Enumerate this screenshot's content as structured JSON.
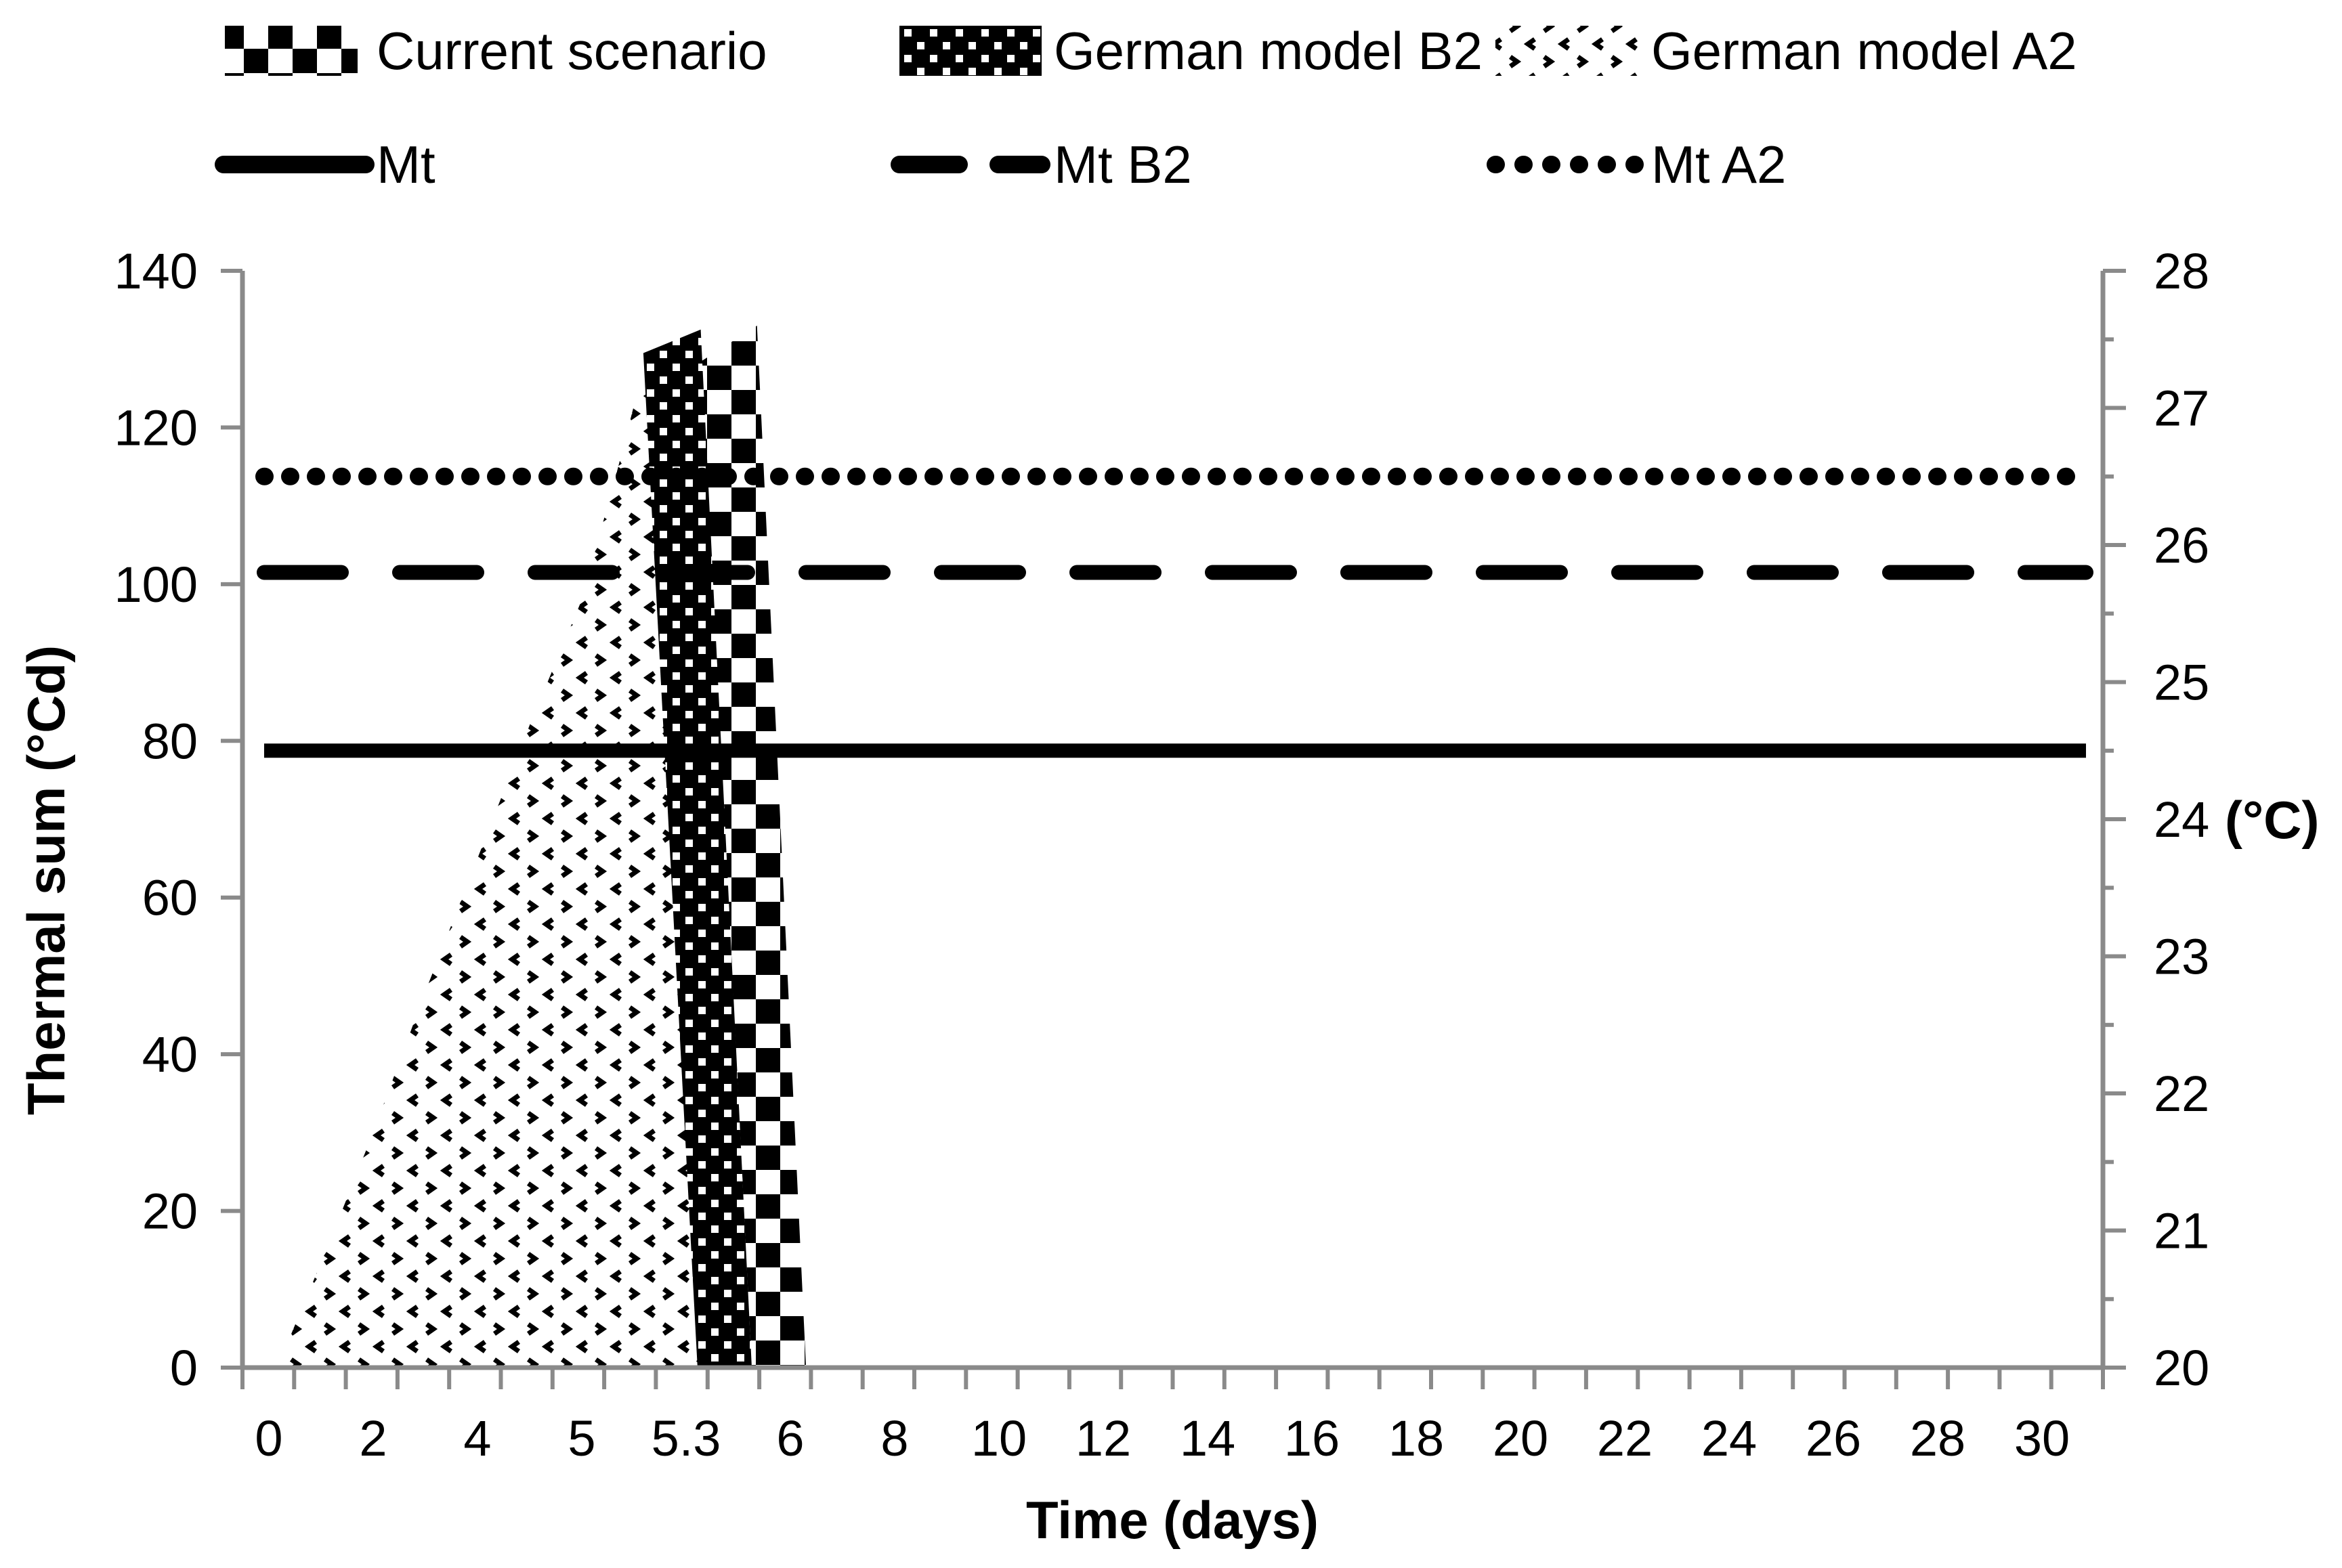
{
  "legend": {
    "areas": [
      {
        "label": "Current scenario",
        "pattern": "checker"
      },
      {
        "label": "German model B2",
        "pattern": "dense"
      },
      {
        "label": "German model A2",
        "pattern": "sparse"
      }
    ],
    "lines": [
      {
        "label": "Mt",
        "style": "solid"
      },
      {
        "label": "Mt B2",
        "style": "dashed"
      },
      {
        "label": "Mt A2",
        "style": "dotted"
      }
    ]
  },
  "chart_data": {
    "type": "area",
    "title": "",
    "xlabel": "Time (days)",
    "ylabel_left": "Thermal sum (°Cd)",
    "ylabel_right": "(°C)",
    "x_categories": [
      "0",
      "2",
      "4",
      "5",
      "5.3",
      "6",
      "8",
      "10",
      "12",
      "14",
      "16",
      "18",
      "20",
      "22",
      "24",
      "26",
      "28",
      "30"
    ],
    "y_left": {
      "min": 0,
      "max": 140,
      "ticks": [
        0,
        20,
        40,
        60,
        80,
        100,
        120,
        140
      ]
    },
    "y_right": {
      "min": 20,
      "max": 28,
      "ticks": [
        20,
        21,
        22,
        23,
        24,
        25,
        26,
        27,
        28
      ],
      "minor_step": 0.5
    },
    "grid": "off",
    "legend_position": "top",
    "hlines": [
      {
        "name": "Mt",
        "value_c": 24.5,
        "style": "solid"
      },
      {
        "name": "Mt B2",
        "value_c": 25.8,
        "style": "dashed"
      },
      {
        "name": "Mt A2",
        "value_c": 26.5,
        "style": "dotted"
      }
    ],
    "areas": [
      {
        "name": "Current scenario",
        "pattern": "checker",
        "peak_thermal_sum_cd": 133,
        "outline_idx_value": [
          [
            4.63,
            0
          ],
          [
            4.15,
            128.5
          ],
          [
            4.68,
            133
          ],
          [
            5.15,
            0
          ]
        ]
      },
      {
        "name": "German model B2",
        "pattern": "dense",
        "peak_thermal_sum_cd": 132.5,
        "outline_idx_value": [
          [
            4.11,
            0
          ],
          [
            3.59,
            129.5
          ],
          [
            4.14,
            132.5
          ],
          [
            4.63,
            0
          ]
        ]
      },
      {
        "name": "German model A2",
        "pattern": "sparse",
        "peak_thermal_sum_cd": 132,
        "outline_idx_value": [
          [
            0.08,
            0
          ],
          [
            0.55,
            15
          ],
          [
            1,
            30
          ],
          [
            1.5,
            48
          ],
          [
            2,
            65
          ],
          [
            2.5,
            82
          ],
          [
            3,
            98
          ],
          [
            3.35,
            115
          ],
          [
            3.6,
            128
          ],
          [
            3.68,
            132
          ],
          [
            4.2,
            0
          ]
        ]
      }
    ],
    "colors": {
      "series": "#000000",
      "axis": "#8a8a8a",
      "background": "#ffffff"
    }
  }
}
